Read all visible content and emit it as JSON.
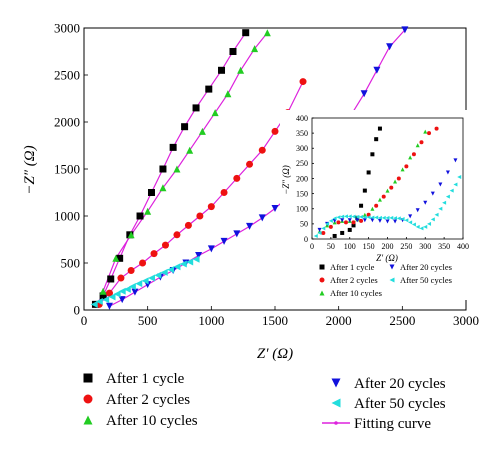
{
  "chart_data": [
    {
      "type": "scatter",
      "title": "",
      "xlabel": "Z′ (Ω)",
      "ylabel": "−Z″ (Ω)",
      "xlim": [
        0,
        3000
      ],
      "ylim": [
        0,
        3000
      ],
      "xticks": [
        "0",
        "500",
        "1000",
        "1500",
        "2000",
        "2500",
        "3000"
      ],
      "yticks": [
        "0",
        "500",
        "1000",
        "1500",
        "2000",
        "2500",
        "3000"
      ],
      "legend_position": "below",
      "fitting_curve_label": "Fitting curve",
      "series": [
        {
          "name": "After 1 cycle",
          "color": "#000000",
          "marker": "square",
          "x": [
            90,
            150,
            210,
            280,
            360,
            440,
            530,
            620,
            700,
            790,
            880,
            980,
            1080,
            1170,
            1270
          ],
          "y": [
            60,
            150,
            330,
            550,
            800,
            1000,
            1250,
            1500,
            1730,
            1950,
            2150,
            2350,
            2550,
            2750,
            2950
          ]
        },
        {
          "name": "After 2 cycles",
          "color": "#ee1111",
          "marker": "circle",
          "x": [
            120,
            200,
            290,
            370,
            460,
            550,
            640,
            730,
            820,
            910,
            1000,
            1100,
            1200,
            1300,
            1400,
            1500,
            1600,
            1720
          ],
          "y": [
            60,
            180,
            340,
            420,
            500,
            600,
            690,
            800,
            900,
            1000,
            1100,
            1250,
            1400,
            1550,
            1700,
            1900,
            2100,
            2430
          ]
        },
        {
          "name": "After 10 cycles",
          "color": "#22cc22",
          "marker": "triangle",
          "x": [
            150,
            250,
            370,
            500,
            620,
            730,
            830,
            930,
            1030,
            1130,
            1230,
            1340,
            1440
          ],
          "y": [
            200,
            550,
            800,
            1050,
            1300,
            1500,
            1700,
            1900,
            2100,
            2300,
            2550,
            2780,
            2950
          ]
        },
        {
          "name": "After 20 cycles",
          "color": "#1111dd",
          "marker": "triangle-down",
          "x": [
            200,
            300,
            400,
            500,
            600,
            700,
            800,
            900,
            1000,
            1100,
            1200,
            1300,
            1400,
            1500,
            1600,
            1700,
            1800,
            1900,
            2000,
            2100,
            2200,
            2300,
            2400,
            2520
          ],
          "y": [
            40,
            110,
            190,
            270,
            350,
            420,
            500,
            580,
            650,
            730,
            810,
            890,
            980,
            1080,
            1200,
            1330,
            1490,
            1670,
            1870,
            2080,
            2300,
            2550,
            2800,
            2980
          ]
        },
        {
          "name": "After 50 cycles",
          "color": "#22dddd",
          "marker": "left-triangle",
          "x": [
            80,
            120,
            170,
            220,
            260,
            300,
            340,
            380,
            430,
            480,
            530,
            580,
            630,
            680,
            730,
            780,
            830,
            880
          ],
          "y": [
            60,
            90,
            110,
            140,
            170,
            200,
            220,
            250,
            280,
            310,
            340,
            370,
            400,
            430,
            460,
            490,
            510,
            540
          ]
        }
      ]
    },
    {
      "type": "scatter",
      "title": "",
      "xlabel": "Z′ (Ω)",
      "ylabel": "−Z″ (Ω)",
      "xlim": [
        0,
        400
      ],
      "ylim": [
        0,
        400
      ],
      "xticks": [
        "0",
        "50",
        "100",
        "150",
        "200",
        "250",
        "300",
        "350",
        "400"
      ],
      "yticks": [
        "0",
        "50",
        "100",
        "150",
        "200",
        "250",
        "300",
        "350",
        "400"
      ],
      "legend_position": "below",
      "series": [
        {
          "name": "After 1 cycle",
          "color": "#000000",
          "marker": "square",
          "x": [
            60,
            80,
            100,
            110,
            120,
            130,
            140,
            150,
            160,
            170,
            180
          ],
          "y": [
            10,
            20,
            30,
            45,
            70,
            110,
            160,
            220,
            280,
            330,
            365
          ]
        },
        {
          "name": "After 2 cycles",
          "color": "#ee1111",
          "marker": "circle",
          "x": [
            30,
            50,
            70,
            90,
            110,
            130,
            150,
            170,
            190,
            210,
            230,
            250,
            270,
            290,
            310,
            330
          ],
          "y": [
            20,
            40,
            55,
            55,
            55,
            60,
            80,
            110,
            140,
            170,
            200,
            240,
            280,
            320,
            350,
            365
          ]
        },
        {
          "name": "After 10 cycles",
          "color": "#22cc22",
          "marker": "triangle",
          "x": [
            20,
            40,
            60,
            80,
            100,
            120,
            140,
            160,
            180,
            200,
            220,
            240,
            260,
            280,
            300
          ],
          "y": [
            25,
            45,
            55,
            60,
            60,
            65,
            80,
            100,
            130,
            160,
            190,
            230,
            270,
            310,
            355
          ]
        },
        {
          "name": "After 20 cycles",
          "color": "#1111dd",
          "marker": "triangle-down",
          "x": [
            20,
            40,
            60,
            80,
            100,
            120,
            140,
            160,
            180,
            200,
            220,
            240,
            260,
            280,
            300,
            320,
            340,
            360,
            380
          ],
          "y": [
            30,
            50,
            60,
            62,
            62,
            62,
            62,
            62,
            60,
            58,
            58,
            62,
            75,
            95,
            120,
            150,
            180,
            220,
            260
          ]
        },
        {
          "name": "After 50 cycles",
          "color": "#22dddd",
          "marker": "left-triangle",
          "x": [
            10,
            20,
            30,
            40,
            50,
            60,
            70,
            80,
            90,
            100,
            110,
            120,
            130,
            140,
            150,
            160,
            170,
            180,
            190,
            200,
            210,
            220,
            230,
            240,
            250,
            260,
            270,
            280,
            290,
            300,
            310,
            320,
            330,
            340,
            350,
            360,
            370,
            380,
            390
          ],
          "y": [
            10,
            20,
            35,
            50,
            60,
            68,
            72,
            74,
            75,
            75,
            74,
            73,
            73,
            72,
            72,
            71,
            71,
            70,
            70,
            70,
            70,
            69,
            68,
            66,
            62,
            55,
            48,
            40,
            35,
            40,
            50,
            65,
            80,
            100,
            120,
            140,
            160,
            180,
            205
          ]
        }
      ]
    }
  ]
}
